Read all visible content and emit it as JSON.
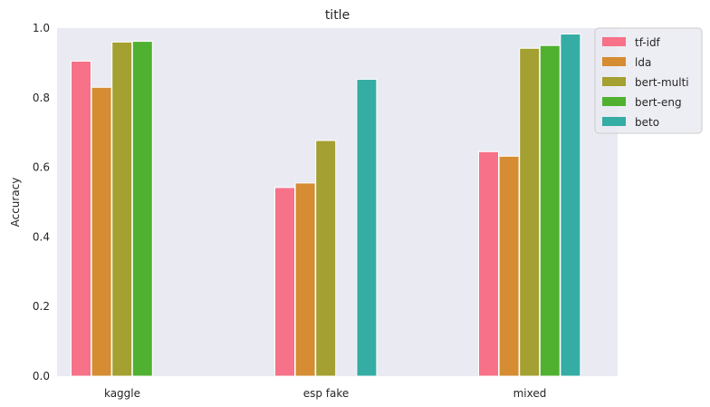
{
  "chart_data": {
    "type": "bar",
    "title": "title",
    "xlabel": "",
    "ylabel": "Accuracy",
    "ylim": [
      0,
      1.0
    ],
    "yticks": [
      0.0,
      0.2,
      0.4,
      0.6,
      0.8,
      1.0
    ],
    "ytick_labels": [
      "0.0",
      "0.2",
      "0.4",
      "0.6",
      "0.8",
      "1.0"
    ],
    "categories": [
      "kaggle",
      "esp fake",
      "mixed"
    ],
    "grid": false,
    "background": "#eaeaf2",
    "legend_position": "top-right",
    "series": [
      {
        "name": "tf-idf",
        "color": "#f77189",
        "values": [
          0.905,
          0.542,
          0.645
        ]
      },
      {
        "name": "lda",
        "color": "#d58c32",
        "values": [
          0.83,
          0.555,
          0.632
        ]
      },
      {
        "name": "bert-multi",
        "color": "#a4a031",
        "values": [
          0.96,
          0.677,
          0.942
        ]
      },
      {
        "name": "bert-eng",
        "color": "#50b131",
        "values": [
          0.962,
          null,
          0.95
        ]
      },
      {
        "name": "beto",
        "color": "#36ada4",
        "values": [
          null,
          0.853,
          0.983
        ]
      }
    ]
  }
}
